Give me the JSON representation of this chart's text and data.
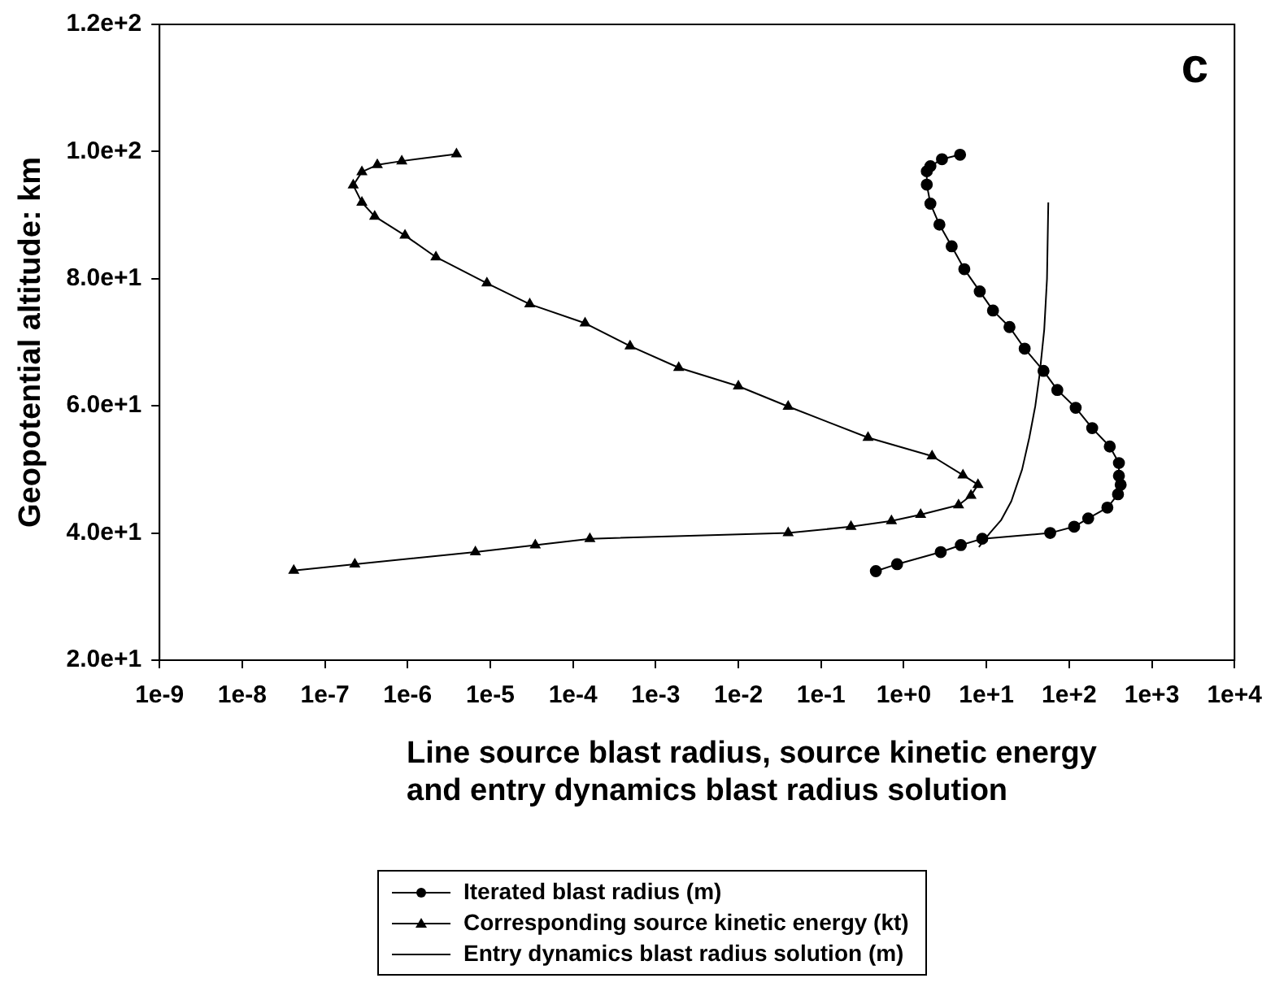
{
  "chart_data": {
    "type": "line",
    "xlabel": "Line source blast radius, source kinetic energy and entry dynamics blast radius solution",
    "ylabel": "Geopotential altitude: km",
    "annotations": [
      "c"
    ],
    "log": "x",
    "grid": false,
    "legend": "bottom",
    "line_style": "solid",
    "xlim": [
      1e-09,
      10000
    ],
    "ylim": [
      20,
      120
    ],
    "xticks": [
      {
        "value": 1e-09,
        "label": "1e-9"
      },
      {
        "value": 1e-08,
        "label": "1e-8"
      },
      {
        "value": 1e-07,
        "label": "1e-7"
      },
      {
        "value": 1e-06,
        "label": "1e-6"
      },
      {
        "value": 1e-05,
        "label": "1e-5"
      },
      {
        "value": 0.0001,
        "label": "1e-4"
      },
      {
        "value": 0.001,
        "label": "1e-3"
      },
      {
        "value": 0.01,
        "label": "1e-2"
      },
      {
        "value": 0.1,
        "label": "1e-1"
      },
      {
        "value": 1,
        "label": "1e+0"
      },
      {
        "value": 10,
        "label": "1e+1"
      },
      {
        "value": 100,
        "label": "1e+2"
      },
      {
        "value": 1000,
        "label": "1e+3"
      },
      {
        "value": 10000,
        "label": "1e+4"
      }
    ],
    "yticks": [
      {
        "value": 20,
        "label": "2.0e+1"
      },
      {
        "value": 40,
        "label": "4.0e+1"
      },
      {
        "value": 60,
        "label": "6.0e+1"
      },
      {
        "value": 80,
        "label": "8.0e+1"
      },
      {
        "value": 100,
        "label": "1.0e+2"
      },
      {
        "value": 120,
        "label": "1.2e+2"
      }
    ],
    "series": [
      {
        "name": "Iterated blast radius (m)",
        "color": "#000000",
        "marker": "circle",
        "x": [
          4.8,
          2.9,
          2.1,
          1.9,
          1.9,
          2.1,
          2.7,
          3.8,
          5.4,
          8.3,
          12,
          19,
          29,
          49,
          72,
          120,
          190,
          310,
          400,
          400,
          420,
          390,
          290,
          170,
          115,
          59,
          8.9,
          4.9,
          2.8,
          0.83,
          0.46
        ],
        "values": [
          99.5,
          98.8,
          97.7,
          96.9,
          94.8,
          91.8,
          88.5,
          85.1,
          81.5,
          78,
          75,
          72.4,
          69,
          65.5,
          62.5,
          59.7,
          56.5,
          53.6,
          51,
          49,
          47.6,
          46.1,
          44,
          42.3,
          41,
          40,
          39.1,
          38.1,
          37,
          35.1,
          34
        ]
      },
      {
        "name": "Corresponding source kinetic energy (kt)",
        "color": "#000000",
        "marker": "triangle",
        "x": [
          3.9e-06,
          8.5e-07,
          4.3e-07,
          2.8e-07,
          2.2e-07,
          2.8e-07,
          4e-07,
          9.3e-07,
          2.2e-06,
          9.1e-06,
          3e-05,
          0.00014,
          0.00049,
          0.0019,
          0.01,
          0.04,
          0.37,
          2.2,
          5.2,
          7.9,
          6.5,
          4.6,
          1.6,
          0.71,
          0.23,
          0.04,
          0.00016,
          3.5e-05,
          6.6e-06,
          2.3e-07,
          4.2e-08
        ],
        "values": [
          99.6,
          98.5,
          97.9,
          96.8,
          94.7,
          92,
          89.8,
          86.8,
          83.4,
          79.3,
          76,
          73,
          69.4,
          66,
          63.1,
          59.9,
          55,
          52.1,
          49.1,
          47.6,
          45.9,
          44.4,
          42.9,
          41.9,
          41,
          40,
          39.1,
          38.1,
          37,
          35.1,
          34.1
        ]
      },
      {
        "name": "Entry dynamics blast radius solution (m)",
        "color": "#000000",
        "marker": "none",
        "x": [
          8.1,
          11,
          15,
          20,
          27,
          33,
          39,
          44,
          50,
          54,
          56
        ],
        "values": [
          37.8,
          40,
          42,
          45,
          50,
          55,
          60,
          65,
          72,
          80,
          92
        ]
      }
    ]
  }
}
